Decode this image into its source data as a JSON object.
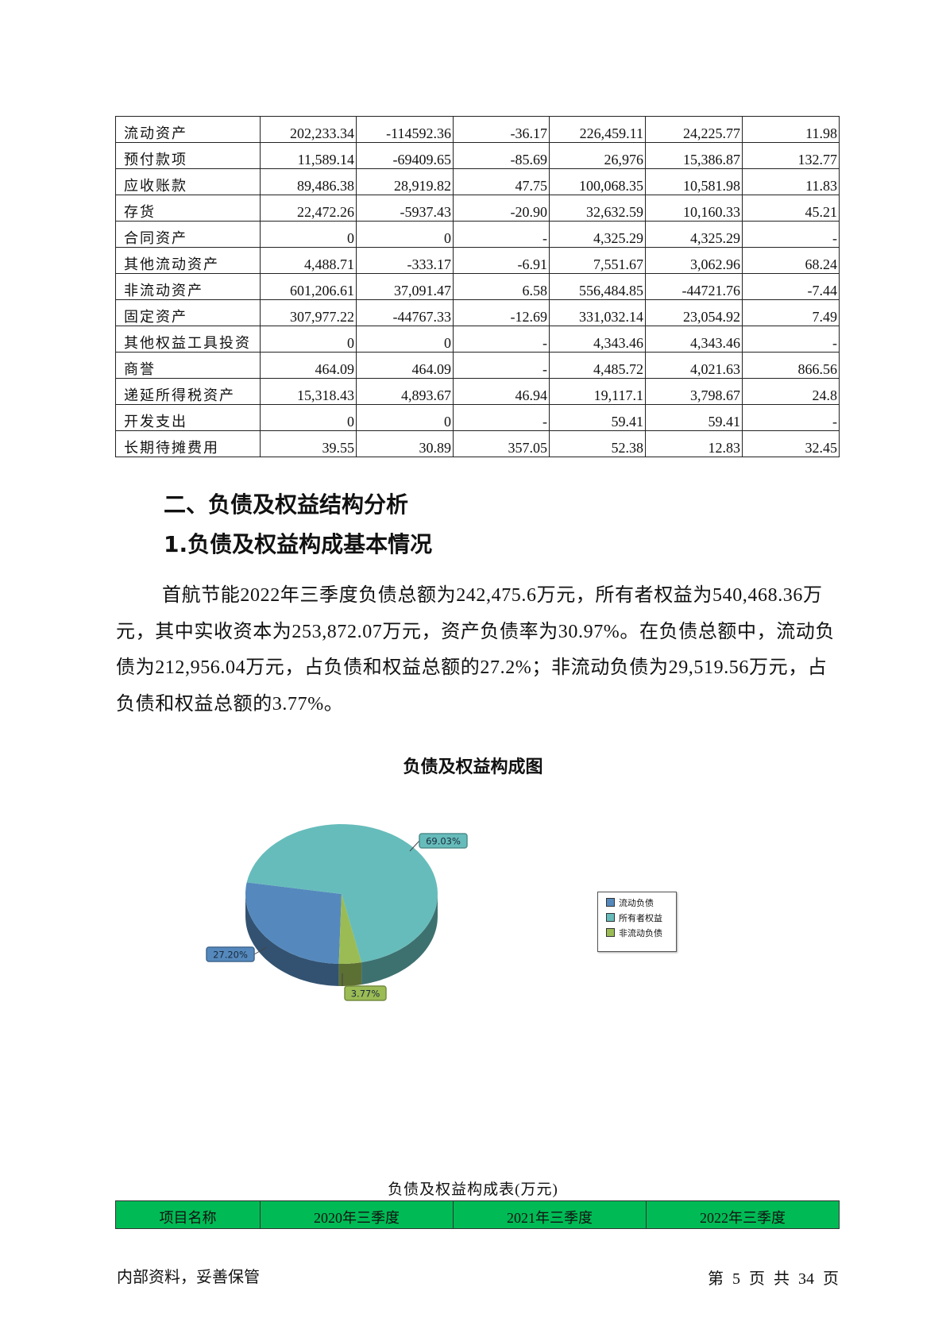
{
  "assets_table": {
    "rows": [
      [
        "流动资产",
        "202,233.34",
        "-114592.36",
        "-36.17",
        "226,459.11",
        "24,225.77",
        "11.98"
      ],
      [
        "预付款项",
        "11,589.14",
        "-69409.65",
        "-85.69",
        "26,976",
        "15,386.87",
        "132.77"
      ],
      [
        "应收账款",
        "89,486.38",
        "28,919.82",
        "47.75",
        "100,068.35",
        "10,581.98",
        "11.83"
      ],
      [
        "存货",
        "22,472.26",
        "-5937.43",
        "-20.90",
        "32,632.59",
        "10,160.33",
        "45.21"
      ],
      [
        "合同资产",
        "0",
        "0",
        "-",
        "4,325.29",
        "4,325.29",
        "-"
      ],
      [
        "其他流动资产",
        "4,488.71",
        "-333.17",
        "-6.91",
        "7,551.67",
        "3,062.96",
        "68.24"
      ],
      [
        "非流动资产",
        "601,206.61",
        "37,091.47",
        "6.58",
        "556,484.85",
        "-44721.76",
        "-7.44"
      ],
      [
        "固定资产",
        "307,977.22",
        "-44767.33",
        "-12.69",
        "331,032.14",
        "23,054.92",
        "7.49"
      ],
      [
        "其他权益工具投资",
        "0",
        "0",
        "-",
        "4,343.46",
        "4,343.46",
        "-"
      ],
      [
        "商誉",
        "464.09",
        "464.09",
        "-",
        "4,485.72",
        "4,021.63",
        "866.56"
      ],
      [
        "递延所得税资产",
        "15,318.43",
        "4,893.67",
        "46.94",
        "19,117.1",
        "3,798.67",
        "24.8"
      ],
      [
        "开发支出",
        "0",
        "0",
        "-",
        "59.41",
        "59.41",
        "-"
      ],
      [
        "长期待摊费用",
        "39.55",
        "30.89",
        "357.05",
        "52.38",
        "12.83",
        "32.45"
      ]
    ]
  },
  "section": {
    "heading": "二、负债及权益结构分析",
    "subheading": "1.负债及权益构成基本情况",
    "paragraph": "首航节能2022年三季度负债总额为242,475.6万元，所有者权益为540,468.36万元，其中实收资本为253,872.07万元，资产负债率为30.97%。在负债总额中，流动负债为212,956.04万元，占负债和权益总额的27.2%；非流动负债为29,519.56万元，占负债和权益总额的3.77%。"
  },
  "chart_data": {
    "type": "pie",
    "title": "负债及权益构成图",
    "style": "3d",
    "legend_position": "right",
    "slices": [
      {
        "name": "流动负债",
        "value": 27.2,
        "label": "27.20%",
        "color": "#5589bd"
      },
      {
        "name": "所有者权益",
        "value": 69.03,
        "label": "69.03%",
        "color": "#66bcbb"
      },
      {
        "name": "非流动负债",
        "value": 3.77,
        "label": "3.77%",
        "color": "#9bbb55"
      }
    ]
  },
  "structure_table": {
    "caption": "负债及权益构成表(万元)",
    "headers": [
      "项目名称",
      "2020年三季度",
      "2021年三季度",
      "2022年三季度"
    ],
    "header_color": "#00bb55"
  },
  "footer": {
    "left": "内部资料，妥善保管",
    "page": "第 5 页  共 34 页"
  }
}
